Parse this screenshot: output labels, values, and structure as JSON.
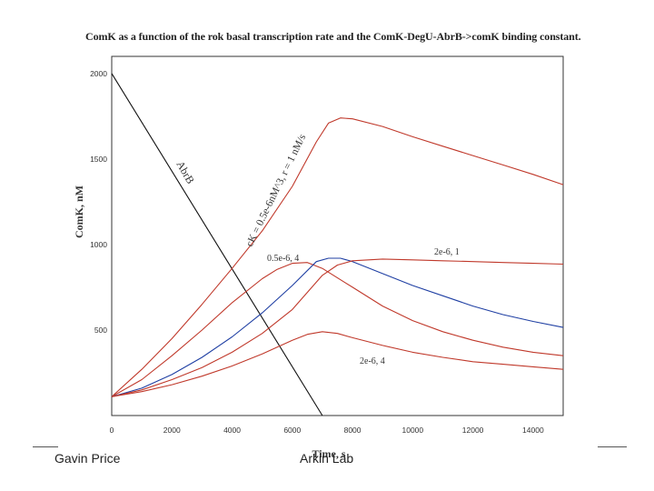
{
  "chart_data": {
    "type": "line",
    "title": "ComK as a function of the rok basal transcription rate and the ComK-DegU-AbrB->comK binding constant.",
    "xlabel": "Time, s",
    "ylabel": "ComK, nM",
    "xlim": [
      0,
      15000
    ],
    "ylim": [
      0,
      2100
    ],
    "xticks": [
      0,
      2000,
      4000,
      6000,
      8000,
      10000,
      12000,
      14000
    ],
    "yticks": [
      500,
      1000,
      1500,
      2000
    ],
    "grid": false,
    "legend": "none",
    "series": [
      {
        "name": "AbrB",
        "color": "#111111",
        "x": [
          0,
          7000
        ],
        "y": [
          2000,
          0
        ]
      },
      {
        "name": "cK = 0.5e-6nM^3, r = 1 nM/s",
        "color": "#c0392b",
        "x": [
          0,
          1000,
          2000,
          3000,
          4000,
          5000,
          6000,
          6800,
          7200,
          7600,
          8000,
          9000,
          10000,
          11000,
          12000,
          13000,
          14000,
          15000
        ],
        "y": [
          110,
          270,
          450,
          650,
          860,
          1080,
          1340,
          1600,
          1710,
          1740,
          1735,
          1690,
          1630,
          1575,
          1520,
          1465,
          1410,
          1350
        ]
      },
      {
        "name": "0.5e-6, 4",
        "color": "#c0392b",
        "x": [
          0,
          1000,
          2000,
          3000,
          4000,
          5000,
          5500,
          6000,
          6500,
          7000,
          8000,
          9000,
          10000,
          11000,
          12000,
          13000,
          14000,
          15000
        ],
        "y": [
          110,
          210,
          350,
          500,
          660,
          800,
          855,
          890,
          895,
          860,
          750,
          640,
          555,
          490,
          440,
          400,
          370,
          350
        ]
      },
      {
        "name": "blue",
        "color": "#1f3fa3",
        "x": [
          0,
          1000,
          2000,
          3000,
          4000,
          5000,
          6000,
          6800,
          7200,
          7600,
          8000,
          9000,
          10000,
          11000,
          12000,
          13000,
          14000,
          15000
        ],
        "y": [
          110,
          160,
          240,
          340,
          460,
          600,
          760,
          900,
          920,
          920,
          900,
          830,
          760,
          700,
          640,
          590,
          550,
          515
        ]
      },
      {
        "name": "2e-6, 1",
        "color": "#c0392b",
        "x": [
          0,
          1000,
          2000,
          3000,
          4000,
          5000,
          6000,
          7000,
          7500,
          8000,
          9000,
          10000,
          11000,
          12000,
          13000,
          14000,
          15000
        ],
        "y": [
          110,
          150,
          210,
          280,
          370,
          480,
          620,
          820,
          880,
          905,
          915,
          910,
          905,
          900,
          895,
          890,
          885
        ]
      },
      {
        "name": "2e-6, 4",
        "color": "#c0392b",
        "x": [
          0,
          1000,
          2000,
          3000,
          4000,
          5000,
          6000,
          6500,
          7000,
          7500,
          8000,
          9000,
          10000,
          11000,
          12000,
          13000,
          14000,
          15000
        ],
        "y": [
          110,
          140,
          180,
          230,
          290,
          360,
          440,
          475,
          490,
          480,
          455,
          410,
          370,
          340,
          315,
          300,
          285,
          270
        ]
      }
    ],
    "annotations": [
      {
        "text": "AbrB",
        "series": "AbrB"
      },
      {
        "text": "cK = 0.5e-6nM^3, r = 1 nM/s",
        "series": "cK = 0.5e-6nM^3, r = 1 nM/s"
      },
      {
        "text": "0.5e-6, 4",
        "series": "0.5e-6, 4"
      },
      {
        "text": "2e-6, 1",
        "series": "2e-6, 1"
      },
      {
        "text": "2e-6, 4",
        "series": "2e-6, 4"
      }
    ]
  },
  "footer": {
    "left": "Gavin Price",
    "center": "Arkin Lab"
  }
}
